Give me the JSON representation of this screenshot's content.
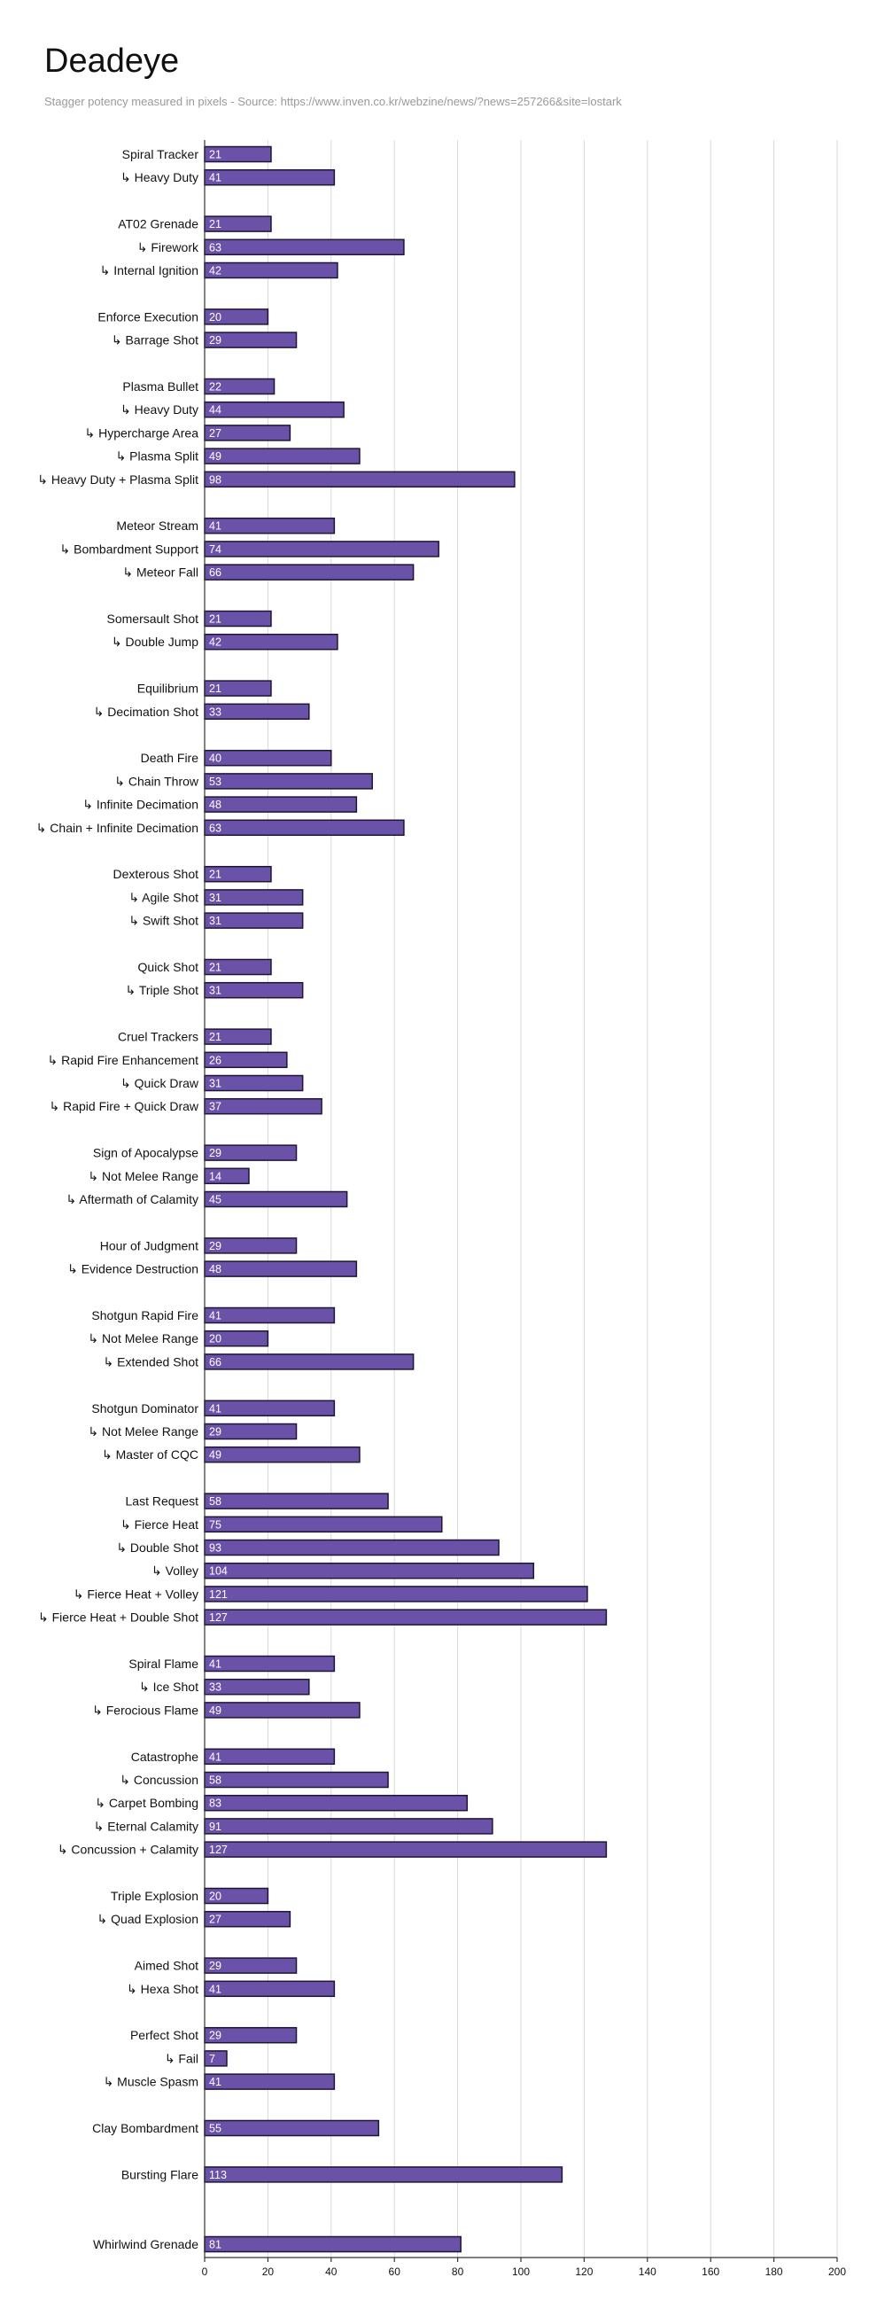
{
  "chart_data": {
    "type": "bar",
    "orientation": "horizontal",
    "title": "Deadeye",
    "subtitle": "Stagger potency measured in pixels - Source: https://www.inven.co.kr/webzine/news/?news=257266&site=lostark",
    "xlim": [
      0,
      200
    ],
    "x_ticks": [
      0,
      20,
      40,
      60,
      80,
      100,
      120,
      140,
      160,
      180,
      200
    ],
    "grid": true,
    "data_labels": true,
    "colors": {
      "bar": "#6a52a8",
      "bar_border": "#1e1633",
      "grid": "#d9d9d9"
    },
    "groups": [
      {
        "items": [
          {
            "label": "Spiral Tracker",
            "value": 21
          },
          {
            "label": "↳ Heavy Duty",
            "value": 41
          }
        ]
      },
      {
        "items": [
          {
            "label": "AT02 Grenade",
            "value": 21
          },
          {
            "label": "↳ Firework",
            "value": 63
          },
          {
            "label": "↳ Internal Ignition",
            "value": 42
          }
        ]
      },
      {
        "items": [
          {
            "label": "Enforce Execution",
            "value": 20
          },
          {
            "label": "↳ Barrage Shot",
            "value": 29
          }
        ]
      },
      {
        "items": [
          {
            "label": "Plasma Bullet",
            "value": 22
          },
          {
            "label": "↳ Heavy Duty",
            "value": 44
          },
          {
            "label": "↳ Hypercharge Area",
            "value": 27
          },
          {
            "label": "↳ Plasma Split",
            "value": 49
          },
          {
            "label": "↳ Heavy Duty + Plasma Split",
            "value": 98
          }
        ]
      },
      {
        "items": [
          {
            "label": "Meteor Stream",
            "value": 41
          },
          {
            "label": "↳ Bombardment Support",
            "value": 74
          },
          {
            "label": "↳ Meteor Fall",
            "value": 66
          }
        ]
      },
      {
        "items": [
          {
            "label": "Somersault Shot",
            "value": 21
          },
          {
            "label": "↳ Double Jump",
            "value": 42
          }
        ]
      },
      {
        "items": [
          {
            "label": "Equilibrium",
            "value": 21
          },
          {
            "label": "↳ Decimation Shot",
            "value": 33
          }
        ]
      },
      {
        "items": [
          {
            "label": "Death Fire",
            "value": 40
          },
          {
            "label": "↳ Chain Throw",
            "value": 53
          },
          {
            "label": "↳ Infinite Decimation",
            "value": 48
          },
          {
            "label": "↳ Chain + Infinite Decimation",
            "value": 63
          }
        ]
      },
      {
        "items": [
          {
            "label": "Dexterous Shot",
            "value": 21
          },
          {
            "label": "↳ Agile Shot",
            "value": 31
          },
          {
            "label": "↳ Swift Shot",
            "value": 31
          }
        ]
      },
      {
        "items": [
          {
            "label": "Quick Shot",
            "value": 21
          },
          {
            "label": "↳ Triple Shot",
            "value": 31
          }
        ]
      },
      {
        "items": [
          {
            "label": "Cruel Trackers",
            "value": 21
          },
          {
            "label": "↳ Rapid Fire Enhancement",
            "value": 26
          },
          {
            "label": "↳ Quick Draw",
            "value": 31
          },
          {
            "label": "↳ Rapid Fire + Quick Draw",
            "value": 37
          }
        ]
      },
      {
        "items": [
          {
            "label": "Sign of Apocalypse",
            "value": 29
          },
          {
            "label": "↳  Not Melee Range",
            "value": 14
          },
          {
            "label": "↳ Aftermath of Calamity",
            "value": 45
          }
        ]
      },
      {
        "items": [
          {
            "label": "Hour of Judgment",
            "value": 29
          },
          {
            "label": "↳ Evidence Destruction",
            "value": 48
          }
        ]
      },
      {
        "items": [
          {
            "label": "Shotgun Rapid Fire",
            "value": 41
          },
          {
            "label": "↳  Not Melee Range",
            "value": 20
          },
          {
            "label": "↳ Extended Shot",
            "value": 66
          }
        ]
      },
      {
        "items": [
          {
            "label": "Shotgun Dominator",
            "value": 41
          },
          {
            "label": "↳  Not Melee Range",
            "value": 29
          },
          {
            "label": "↳ Master of CQC",
            "value": 49
          }
        ]
      },
      {
        "items": [
          {
            "label": "Last Request",
            "value": 58
          },
          {
            "label": "↳ Fierce Heat",
            "value": 75
          },
          {
            "label": "↳ Double Shot",
            "value": 93
          },
          {
            "label": "↳ Volley",
            "value": 104
          },
          {
            "label": "↳ Fierce Heat + Volley",
            "value": 121
          },
          {
            "label": "↳ Fierce Heat + Double Shot",
            "value": 127
          }
        ]
      },
      {
        "items": [
          {
            "label": "Spiral Flame",
            "value": 41
          },
          {
            "label": "↳ Ice Shot",
            "value": 33
          },
          {
            "label": "↳ Ferocious Flame",
            "value": 49
          }
        ]
      },
      {
        "items": [
          {
            "label": "Catastrophe",
            "value": 41
          },
          {
            "label": "↳ Concussion",
            "value": 58
          },
          {
            "label": "↳ Carpet Bombing",
            "value": 83
          },
          {
            "label": "↳ Eternal Calamity",
            "value": 91
          },
          {
            "label": "↳ Concussion + Calamity",
            "value": 127
          }
        ]
      },
      {
        "items": [
          {
            "label": "Triple Explosion",
            "value": 20
          },
          {
            "label": "↳ Quad Explosion",
            "value": 27
          }
        ]
      },
      {
        "items": [
          {
            "label": "Aimed Shot",
            "value": 29
          },
          {
            "label": "↳ Hexa Shot",
            "value": 41
          }
        ]
      },
      {
        "items": [
          {
            "label": "Perfect Shot",
            "value": 29
          },
          {
            "label": "↳ Fail",
            "value": 7
          },
          {
            "label": "↳ Muscle Spasm",
            "value": 41
          }
        ]
      },
      {
        "items": [
          {
            "label": "Clay Bombardment",
            "value": 55
          }
        ]
      },
      {
        "items": [
          {
            "label": "Bursting Flare",
            "value": 113
          }
        ]
      },
      {
        "items": []
      },
      {
        "items": [
          {
            "label": "Whirlwind Grenade",
            "value": 81
          }
        ]
      }
    ]
  }
}
